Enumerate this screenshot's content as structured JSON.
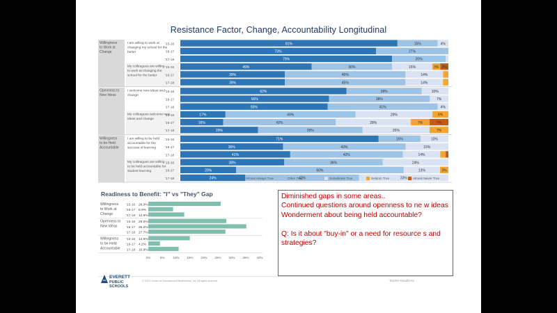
{
  "title": "Resistance Factor, Change, Accountability Longitudinal",
  "bottom_title": "Readiness to Benefit: \"I\" vs \"They\" Gap",
  "notes": [
    "Diminished gaps in some areas..",
    "Continued questions around openness to ne w ideas",
    "Wonderment about being held accountable?",
    "",
    "Q: Is it about \"buy-in\" or a need for resource s and strategies?"
  ],
  "logo": {
    "line1": "EVERETT",
    "line2": "PUBLIC SCHOOLS"
  },
  "footer": {
    "note": "© 2013 Center for Educational Effectiveness, Inc. All rights reserved.",
    "right": "Teacher Readiness"
  },
  "colors": {
    "almost_always": "#2e75b6",
    "often": "#9dc3e6",
    "sometimes": "#dae3f3",
    "seldom": "#f4a430",
    "almost_never": "#c55a11",
    "bottom_bar": "#7fbfaf"
  },
  "chart_data": [
    {
      "type": "bar",
      "stacked": true,
      "orientation": "horizontal",
      "title": "Resistance Factor, Change, Accountability Longitudinal",
      "legend": [
        "Almost Always True",
        "Often True",
        "Sometimes True",
        "Seldom True",
        "Almost Never True"
      ],
      "legend_placement": "bottom",
      "series_colors": [
        "#2e75b6",
        "#9dc3e6",
        "#dae3f3",
        "#f4a430",
        "#c55a11"
      ],
      "groups": [
        {
          "name": "Willingness to Work at Change",
          "items": [
            {
              "label": "I am willing to work at changing my school for the better",
              "rows": [
                {
                  "year": "'15-16",
                  "values": [
                    81,
                    15,
                    4,
                    0,
                    0
                  ]
                },
                {
                  "year": "'16-17",
                  "values": [
                    73,
                    27,
                    0,
                    0,
                    0
                  ]
                },
                {
                  "year": "'17-18",
                  "values": [
                    79,
                    20,
                    1,
                    0,
                    0
                  ]
                }
              ]
            },
            {
              "label": "My colleagues are willing to work at changing the school for the better",
              "rows": [
                {
                  "year": "'15-16",
                  "values": [
                    49,
                    30,
                    15,
                    3,
                    3
                  ]
                },
                {
                  "year": "'16-17",
                  "values": [
                    39,
                    45,
                    14,
                    2,
                    0
                  ]
                },
                {
                  "year": "'17-18",
                  "values": [
                    39,
                    45,
                    14,
                    2,
                    0
                  ]
                }
              ]
            }
          ]
        },
        {
          "name": "Openness to New Ideas",
          "items": [
            {
              "label": "I welcome new ideas and change",
              "rows": [
                {
                  "year": "'15-16",
                  "values": [
                    62,
                    28,
                    10,
                    0,
                    0
                  ]
                },
                {
                  "year": "'16-17",
                  "values": [
                    56,
                    38,
                    7,
                    0,
                    0
                  ]
                },
                {
                  "year": "'17-18",
                  "values": [
                    55,
                    41,
                    4,
                    0,
                    0
                  ]
                }
              ]
            },
            {
              "label": "My colleagues welcome new ideas and change",
              "rows": [
                {
                  "year": "'15-16",
                  "values": [
                    17,
                    49,
                    29,
                    6,
                    0
                  ]
                },
                {
                  "year": "'16-17",
                  "values": [
                    16,
                    42,
                    28,
                    7,
                    7
                  ]
                },
                {
                  "year": "'17-18",
                  "values": [
                    29,
                    39,
                    25,
                    7,
                    0
                  ]
                }
              ]
            }
          ]
        },
        {
          "name": "Willingness to be Held Accountable",
          "items": [
            {
              "label": "I am willing to be held accountable for the success of learning",
              "rows": [
                {
                  "year": "'15-16",
                  "values": [
                    71,
                    15,
                    10,
                    0,
                    0
                  ]
                },
                {
                  "year": "'16-17",
                  "values": [
                    36,
                    43,
                    15,
                    0,
                    0
                  ]
                },
                {
                  "year": "'17-18",
                  "values": [
                    41,
                    42,
                    14,
                    2,
                    1
                  ]
                }
              ]
            },
            {
              "label": "My colleagues are willing to be held accountable for student learning",
              "rows": [
                {
                  "year": "'15-16",
                  "values": [
                    38,
                    36,
                    24,
                    0,
                    0
                  ]
                },
                {
                  "year": "'16-17",
                  "values": [
                    20,
                    60,
                    13,
                    3,
                    0
                  ]
                },
                {
                  "year": "'17-18",
                  "values": [
                    24,
                    42,
                    33,
                    0,
                    0
                  ]
                }
              ]
            }
          ]
        }
      ]
    },
    {
      "type": "bar",
      "orientation": "horizontal",
      "title": "Readiness to Benefit: \"I\" vs \"They\" Gap",
      "groups": [
        {
          "name": "Willingness to Work at Change",
          "rows": [
            {
              "year": "'15-16",
              "value": 26.0
            },
            {
              "year": "'16-17",
              "value": 8.9
            },
            {
              "year": "'17-18",
              "value": 12.9
            }
          ]
        },
        {
          "name": "Openness to New Ideas",
          "rows": [
            {
              "year": "'15-16",
              "value": 28.0
            },
            {
              "year": "'16-17",
              "value": 35.2
            },
            {
              "year": "'17-18",
              "value": 27.7
            }
          ]
        },
        {
          "name": "Willingness to be Held Accountable",
          "rows": [
            {
              "year": "'15-16",
              "value": 14.9
            },
            {
              "year": "'16-17",
              "value": 4.2
            },
            {
              "year": "'17-18",
              "value": 10.9
            }
          ]
        }
      ],
      "xlim": [
        0,
        40
      ],
      "xticks": [
        "0%",
        "5%",
        "10%",
        "15%",
        "20%",
        "25%",
        "30%",
        "35%",
        "40%"
      ],
      "value_suffix": "%"
    }
  ]
}
